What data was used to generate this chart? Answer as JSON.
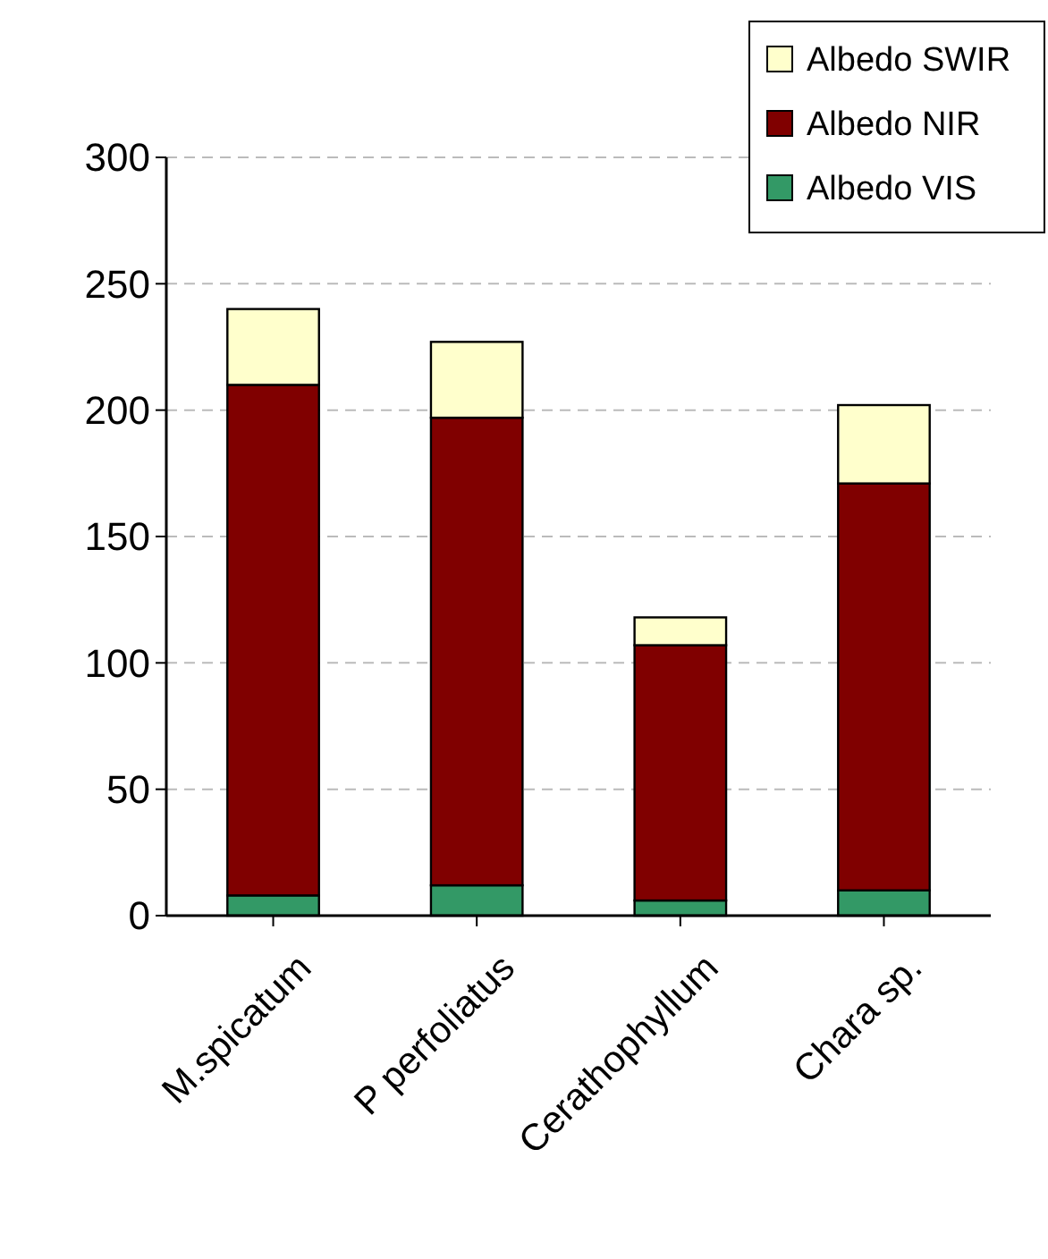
{
  "chart_data": {
    "type": "bar",
    "stacked": true,
    "categories": [
      "M.spicatum",
      "P perfoliatus",
      "Cerathophyllum",
      "Chara sp."
    ],
    "series": [
      {
        "name": "Albedo VIS",
        "color": "#339966",
        "values": [
          8,
          12,
          6,
          10
        ]
      },
      {
        "name": "Albedo NIR",
        "color": "#800000",
        "values": [
          202,
          185,
          101,
          161
        ]
      },
      {
        "name": "Albedo SWIR",
        "color": "#ffffcc",
        "values": [
          30,
          30,
          11,
          31
        ]
      }
    ],
    "ylim": [
      0,
      300
    ],
    "yticks": [
      0,
      50,
      100,
      150,
      200,
      250,
      300
    ],
    "grid": "y",
    "legend": "top right"
  }
}
